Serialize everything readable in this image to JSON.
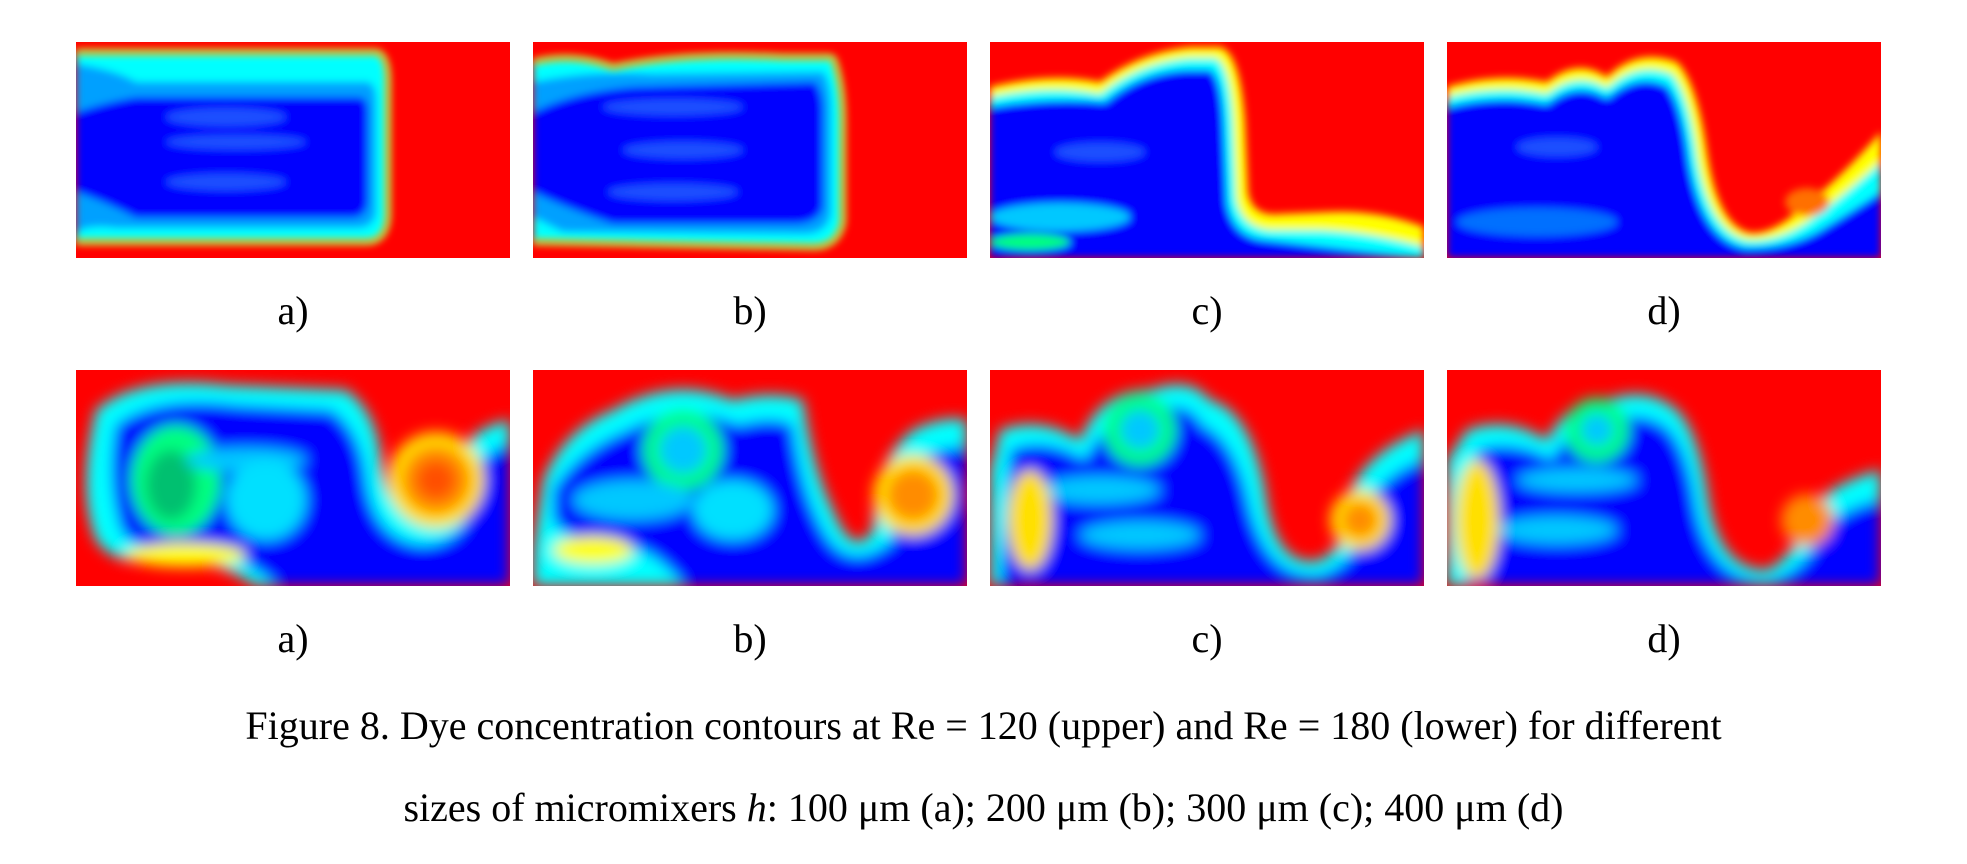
{
  "colors": {
    "high_concentration": "#ff0000",
    "low_concentration": "#0000ff",
    "gradient": [
      "#ff0000",
      "#ff8c00",
      "#ffff00",
      "#00ff80",
      "#00ffff",
      "#00a0ff",
      "#0000ff"
    ]
  },
  "rows": [
    {
      "panels": [
        {
          "label": "a)",
          "description": "Re=120, h=100"
        },
        {
          "label": "b)",
          "description": "Re=120, h=200"
        },
        {
          "label": "c)",
          "description": "Re=120, h=300"
        },
        {
          "label": "d)",
          "description": "Re=120, h=400"
        }
      ]
    },
    {
      "panels": [
        {
          "label": "a)",
          "description": "Re=180, h=100"
        },
        {
          "label": "b)",
          "description": "Re=180, h=200"
        },
        {
          "label": "c)",
          "description": "Re=180, h=300"
        },
        {
          "label": "d)",
          "description": "Re=180, h=400"
        }
      ]
    }
  ],
  "caption": {
    "line1": "Figure 8. Dye concentration contours at Re = 120 (upper) and Re = 180 (lower) for different",
    "line2_prefix": "sizes of micromixers ",
    "line2_var": "h",
    "line2_suffix": ": 100 μm (a); 200 μm (b); 300 μm (c); 400 μm (d)"
  }
}
